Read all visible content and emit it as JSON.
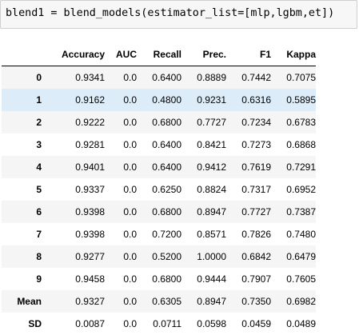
{
  "code_cell": {
    "source": "blend1 = blend_models(estimator_list=[mlp,lgbm,et])"
  },
  "table": {
    "index_header": "",
    "columns": [
      "Accuracy",
      "AUC",
      "Recall",
      "Prec.",
      "F1",
      "Kappa"
    ],
    "highlighted_row": 1,
    "rows": [
      {
        "index": "0",
        "cells": [
          "0.9341",
          "0.0",
          "0.6400",
          "0.8889",
          "0.7442",
          "0.7075"
        ]
      },
      {
        "index": "1",
        "cells": [
          "0.9162",
          "0.0",
          "0.4800",
          "0.9231",
          "0.6316",
          "0.5895"
        ]
      },
      {
        "index": "2",
        "cells": [
          "0.9222",
          "0.0",
          "0.6800",
          "0.7727",
          "0.7234",
          "0.6783"
        ]
      },
      {
        "index": "3",
        "cells": [
          "0.9281",
          "0.0",
          "0.6400",
          "0.8421",
          "0.7273",
          "0.6868"
        ]
      },
      {
        "index": "4",
        "cells": [
          "0.9401",
          "0.0",
          "0.6400",
          "0.9412",
          "0.7619",
          "0.7291"
        ]
      },
      {
        "index": "5",
        "cells": [
          "0.9337",
          "0.0",
          "0.6250",
          "0.8824",
          "0.7317",
          "0.6952"
        ]
      },
      {
        "index": "6",
        "cells": [
          "0.9398",
          "0.0",
          "0.6800",
          "0.8947",
          "0.7727",
          "0.7387"
        ]
      },
      {
        "index": "7",
        "cells": [
          "0.9398",
          "0.0",
          "0.7200",
          "0.8571",
          "0.7826",
          "0.7480"
        ]
      },
      {
        "index": "8",
        "cells": [
          "0.9277",
          "0.0",
          "0.5200",
          "1.0000",
          "0.6842",
          "0.6479"
        ]
      },
      {
        "index": "9",
        "cells": [
          "0.9458",
          "0.0",
          "0.6800",
          "0.9444",
          "0.7907",
          "0.7605"
        ]
      },
      {
        "index": "Mean",
        "cells": [
          "0.9327",
          "0.0",
          "0.6305",
          "0.8947",
          "0.7350",
          "0.6982"
        ]
      },
      {
        "index": "SD",
        "cells": [
          "0.0087",
          "0.0",
          "0.0711",
          "0.0598",
          "0.0459",
          "0.0489"
        ]
      }
    ]
  },
  "colors": {
    "row_stripe": "#f5f5f5",
    "row_hover": "#dcecf8",
    "code_background": "#f7f7f7"
  }
}
